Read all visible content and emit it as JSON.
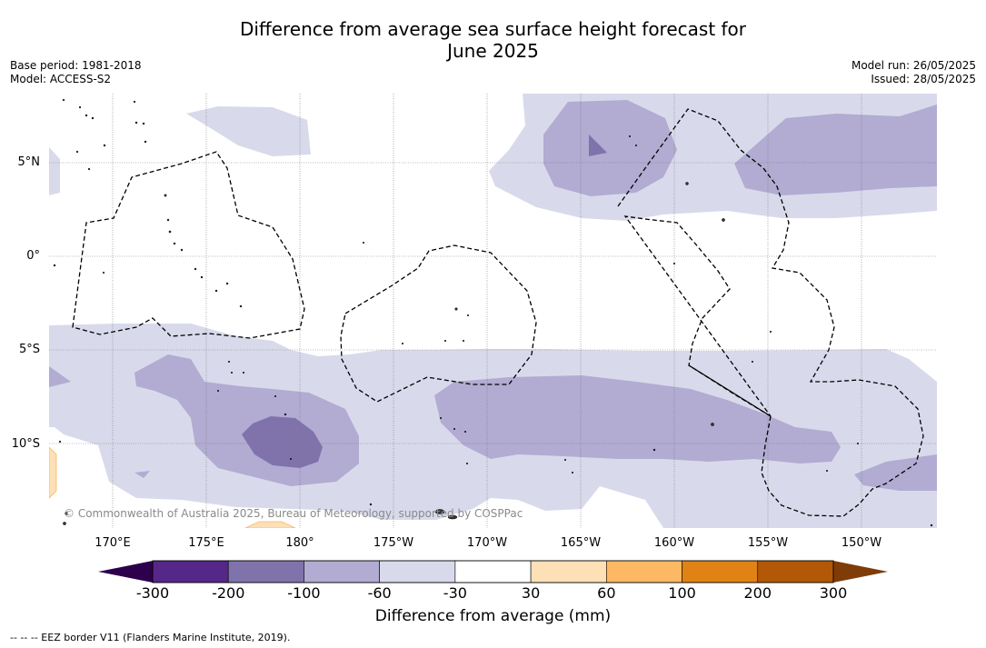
{
  "title_line1": "Difference from average sea surface height forecast for",
  "title_line2": "June 2025",
  "meta_left": {
    "base_period": "Base period: 1981-2018",
    "model": "Model: ACCESS-S2"
  },
  "meta_right": {
    "model_run": "Model run: 26/05/2025",
    "issued": "Issued: 28/05/2025"
  },
  "lat_labels": [
    "5°N",
    "0°",
    "5°S",
    "10°S"
  ],
  "lon_labels": [
    "170°E",
    "175°E",
    "180°",
    "175°W",
    "170°W",
    "165°W",
    "160°W",
    "155°W",
    "150°W"
  ],
  "copyright": "© Commonwealth of Australia 2025, Bureau of Meteorology, supported by COSPPac",
  "colorbar": {
    "ticks": [
      "-300",
      "-200",
      "-100",
      "-60",
      "-30",
      "30",
      "60",
      "100",
      "200",
      "300"
    ],
    "colors": {
      "below_min": "#2d004b",
      "minus_300_200": "#542788",
      "minus_200_100": "#8073ac",
      "minus_100_60": "#b2abd2",
      "minus_60_30": "#d8daeb",
      "minus_30_30": "#ffffff",
      "plus_30_60": "#fee0b6",
      "plus_60_100": "#fdb863",
      "plus_100_200": "#e08214",
      "plus_200_300": "#b35806",
      "above_max": "#7f3b08"
    },
    "label": "Difference from average (mm)"
  },
  "footnote": "-- -- -- EEZ border V11 (Flanders Marine Institute, 2019)."
}
